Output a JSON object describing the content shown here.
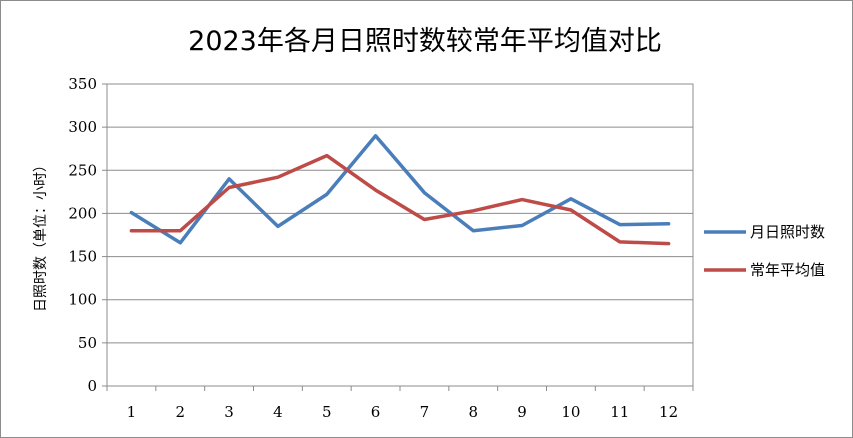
{
  "chart_data": {
    "type": "line",
    "title": "2023年各月日照时数较常年平均值对比",
    "ylabel": "日照时数（单位：小时）",
    "xlabel": "",
    "categories": [
      "1",
      "2",
      "3",
      "4",
      "5",
      "6",
      "7",
      "8",
      "9",
      "10",
      "11",
      "12"
    ],
    "ylim": [
      0,
      350
    ],
    "yticks": [
      0,
      50,
      100,
      150,
      200,
      250,
      300,
      350
    ],
    "grid": true,
    "legend_position": "right",
    "series": [
      {
        "name": "月日照时数",
        "color": "#4a7ebb",
        "values": [
          201,
          166,
          240,
          185,
          222,
          290,
          224,
          180,
          186,
          217,
          187,
          188
        ]
      },
      {
        "name": "常年平均值",
        "color": "#be4b48",
        "values": [
          180,
          180,
          230,
          242,
          267,
          227,
          193,
          203,
          216,
          204,
          167,
          165
        ]
      }
    ]
  }
}
